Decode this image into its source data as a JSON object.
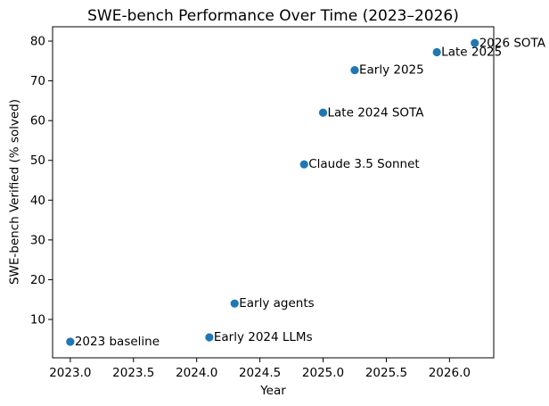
{
  "chart_data": {
    "type": "scatter",
    "title": "SWE-bench Performance Over Time (2023–2026)",
    "xlabel": "Year",
    "ylabel": "SWE-bench Verified (% solved)",
    "xlim": [
      2022.86,
      2026.35
    ],
    "ylim": [
      0.35,
      83.6
    ],
    "xticks": [
      2023.0,
      2023.5,
      2024.0,
      2024.5,
      2025.0,
      2025.5,
      2026.0
    ],
    "yticks": [
      10,
      20,
      30,
      40,
      50,
      60,
      70,
      80
    ],
    "grid": false,
    "legend": false,
    "marker_color": "#1f77b4",
    "axis_color": "#000000",
    "text_color": "#000000",
    "points": [
      {
        "x": 2023.0,
        "y": 4.4,
        "label": "2023 baseline"
      },
      {
        "x": 2024.1,
        "y": 5.5,
        "label": "Early 2024 LLMs"
      },
      {
        "x": 2024.3,
        "y": 14.0,
        "label": "Early agents"
      },
      {
        "x": 2024.85,
        "y": 49.0,
        "label": "Claude 3.5 Sonnet"
      },
      {
        "x": 2025.0,
        "y": 62.0,
        "label": "Late 2024 SOTA"
      },
      {
        "x": 2025.25,
        "y": 72.7,
        "label": "Early 2025"
      },
      {
        "x": 2025.9,
        "y": 77.2,
        "label": "Late 2025"
      },
      {
        "x": 2026.2,
        "y": 79.5,
        "label": "2026 SOTA"
      }
    ]
  }
}
